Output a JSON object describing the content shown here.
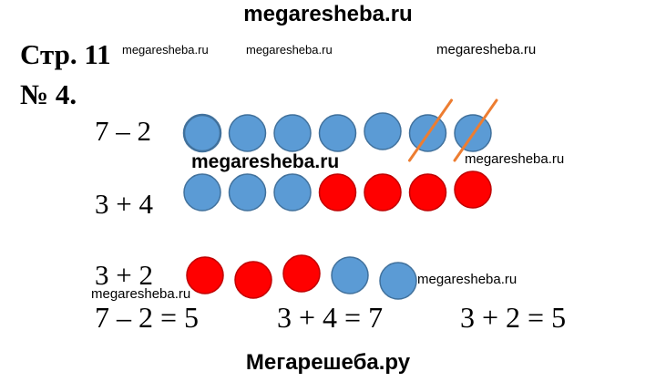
{
  "watermarks": {
    "top": "megaresheba.ru",
    "bottom": "Мегарешеба.ру",
    "small": "megaresheba.ru",
    "bold": "megaresheba.ru"
  },
  "page_label": "Стр. 11",
  "task_label": "№ 4.",
  "rows": [
    {
      "expression": "7 – 2",
      "counters": [
        "blue",
        "blue",
        "blue",
        "blue",
        "blue",
        "blue",
        "blue"
      ],
      "crossed_out": 2
    },
    {
      "expression": "3 + 4",
      "counters": [
        "blue",
        "blue",
        "blue",
        "red",
        "red",
        "red",
        "red"
      ],
      "crossed_out": 0
    },
    {
      "expression": "3 + 2",
      "counters": [
        "red",
        "red",
        "red",
        "blue",
        "blue"
      ],
      "crossed_out": 0
    }
  ],
  "answers": [
    "7 – 2 = 5",
    "3 + 4 = 7",
    "3 + 2 = 5"
  ],
  "colors": {
    "blue": "#5b9bd5",
    "blue_outline": "#41719c",
    "red": "#ff0000",
    "red_outline": "#c00000",
    "cross_line": "#ed7d31"
  }
}
